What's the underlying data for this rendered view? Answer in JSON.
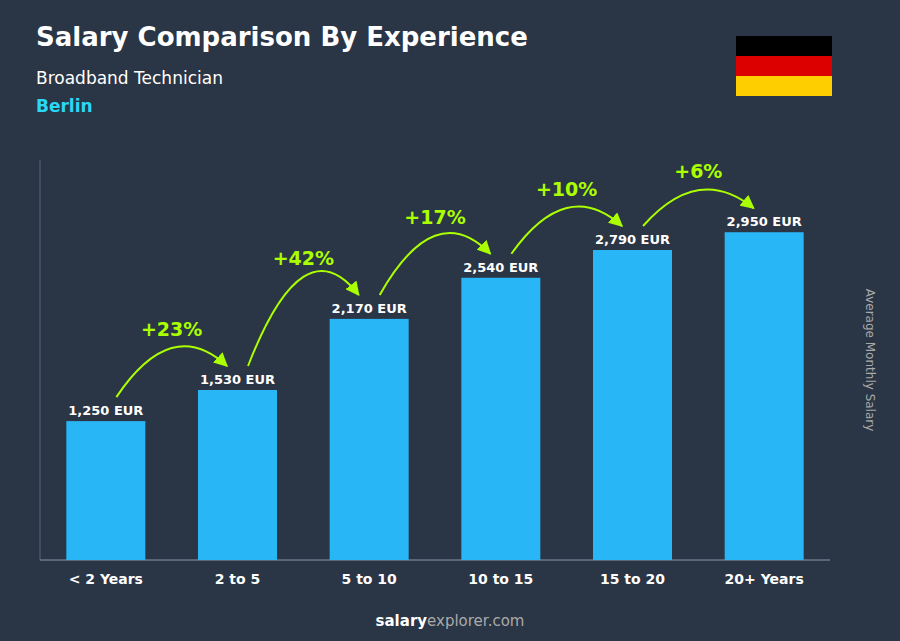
{
  "chart_data": {
    "type": "bar",
    "title": "Salary Comparison By Experience",
    "subtitle": "Broadband Technician",
    "city": "Berlin",
    "ylabel": "Average Monthly Salary",
    "categories": [
      "< 2 Years",
      "2 to 5",
      "5 to 10",
      "10 to 15",
      "15 to 20",
      "20+ Years"
    ],
    "values": [
      1250,
      1530,
      2170,
      2540,
      2790,
      2950
    ],
    "value_labels": [
      "1,250 EUR",
      "1,530 EUR",
      "2,170 EUR",
      "2,540 EUR",
      "2,790 EUR",
      "2,950 EUR"
    ],
    "pct_changes": [
      null,
      "+23%",
      "+42%",
      "+17%",
      "+10%",
      "+6%"
    ],
    "footer": [
      "salary",
      "explorer.com"
    ],
    "color": "#29b6f6",
    "pct_color": "#aaff00",
    "city_color": "#29d8f5",
    "ylim": [
      0,
      3600
    ],
    "data_labels": true,
    "tick_labels": "x",
    "grid": false
  }
}
